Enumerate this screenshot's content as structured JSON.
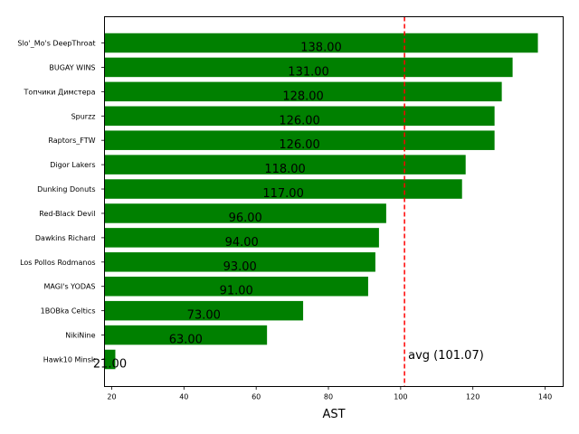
{
  "chart_data": {
    "type": "bar",
    "orientation": "horizontal",
    "categories": [
      "Slo'_Mo's DeepThroat",
      "BUGAY WINS",
      "Топчики Димстера",
      "Spurzz",
      "Raptors_FTW",
      "Digor Lakers",
      "Dunking Donuts",
      "Red-Black Devil",
      "Dawkins Richard",
      "Los Pollos Rodmanos",
      "MAGI's YODAS",
      "1BOBka Celtics",
      "NikiNine",
      "Hawk10 Minsk"
    ],
    "values": [
      138,
      131,
      128,
      126,
      126,
      118,
      117,
      96,
      94,
      93,
      91,
      73,
      63,
      21
    ],
    "value_labels": [
      "138.00",
      "131.00",
      "128.00",
      "126.00",
      "126.00",
      "118.00",
      "117.00",
      "96.00",
      "94.00",
      "93.00",
      "91.00",
      "73.00",
      "63.00",
      "21.00"
    ],
    "xlabel": "AST",
    "ylabel": "",
    "title": "",
    "xlim": [
      18,
      145
    ],
    "xticks": [
      20,
      40,
      60,
      80,
      100,
      120,
      140
    ],
    "bar_color": "#008000",
    "grid": false,
    "reference_line": {
      "value": 101.07,
      "label": "avg (101.07)",
      "color": "#ff0000",
      "style": "dashed"
    }
  }
}
